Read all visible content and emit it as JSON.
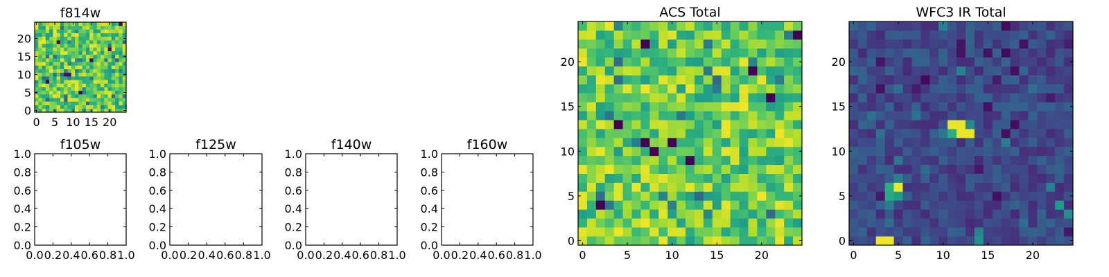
{
  "chart_data": [
    {
      "id": "f814w",
      "type": "heatmap",
      "title": "f814w",
      "xlabel": "",
      "ylabel": "",
      "grid_size": 25,
      "xlim": [
        -0.5,
        24.5
      ],
      "ylim": [
        -0.5,
        24.5
      ],
      "x_ticks": [
        0,
        5,
        10,
        15,
        20
      ],
      "x_tick_labels": [
        "0",
        "5",
        "10",
        "15",
        "20"
      ],
      "y_ticks": [
        0,
        5,
        10,
        15,
        20
      ],
      "y_tick_labels": [
        "0",
        "5",
        "10",
        "15",
        "20"
      ],
      "colormap": "viridis",
      "pattern": "noise_high",
      "seed": 814
    },
    {
      "id": "f105w",
      "type": "empty",
      "title": "f105w",
      "xlim": [
        0.0,
        1.0
      ],
      "ylim": [
        0.0,
        1.0
      ],
      "x_ticks": [
        0.0,
        0.2,
        0.4,
        0.6,
        0.8,
        1.0
      ],
      "x_tick_labels": [
        "0.0",
        "0.2",
        "0.4",
        "0.6",
        "0.8",
        "1.0"
      ],
      "y_ticks": [
        0.0,
        0.2,
        0.4,
        0.6,
        0.8,
        1.0
      ],
      "y_tick_labels": [
        "0.0",
        "0.2",
        "0.4",
        "0.6",
        "0.8",
        "1.0"
      ]
    },
    {
      "id": "f125w",
      "type": "empty",
      "title": "f125w",
      "xlim": [
        0.0,
        1.0
      ],
      "ylim": [
        0.0,
        1.0
      ],
      "x_ticks": [
        0.0,
        0.2,
        0.4,
        0.6,
        0.8,
        1.0
      ],
      "x_tick_labels": [
        "0.0",
        "0.2",
        "0.4",
        "0.6",
        "0.8",
        "1.0"
      ],
      "y_ticks": [
        0.0,
        0.2,
        0.4,
        0.6,
        0.8,
        1.0
      ],
      "y_tick_labels": [
        "0.0",
        "0.2",
        "0.4",
        "0.6",
        "0.8",
        "1.0"
      ]
    },
    {
      "id": "f140w",
      "type": "empty",
      "title": "f140w",
      "xlim": [
        0.0,
        1.0
      ],
      "ylim": [
        0.0,
        1.0
      ],
      "x_ticks": [
        0.0,
        0.2,
        0.4,
        0.6,
        0.8,
        1.0
      ],
      "x_tick_labels": [
        "0.0",
        "0.2",
        "0.4",
        "0.6",
        "0.8",
        "1.0"
      ],
      "y_ticks": [
        0.0,
        0.2,
        0.4,
        0.6,
        0.8,
        1.0
      ],
      "y_tick_labels": [
        "0.0",
        "0.2",
        "0.4",
        "0.6",
        "0.8",
        "1.0"
      ]
    },
    {
      "id": "f160w",
      "type": "empty",
      "title": "f160w",
      "xlim": [
        0.0,
        1.0
      ],
      "ylim": [
        0.0,
        1.0
      ],
      "x_ticks": [
        0.0,
        0.2,
        0.4,
        0.6,
        0.8,
        1.0
      ],
      "x_tick_labels": [
        "0.0",
        "0.2",
        "0.4",
        "0.6",
        "0.8",
        "1.0"
      ],
      "y_ticks": [
        0.0,
        0.2,
        0.4,
        0.6,
        0.8,
        1.0
      ],
      "y_tick_labels": [
        "0.0",
        "0.2",
        "0.4",
        "0.6",
        "0.8",
        "1.0"
      ]
    },
    {
      "id": "acs-total",
      "type": "heatmap",
      "title": "ACS Total",
      "xlabel": "",
      "ylabel": "",
      "grid_size": 25,
      "xlim": [
        -0.5,
        24.5
      ],
      "ylim": [
        -0.5,
        24.5
      ],
      "x_ticks": [
        0,
        5,
        10,
        15,
        20
      ],
      "x_tick_labels": [
        "0",
        "5",
        "10",
        "15",
        "20"
      ],
      "y_ticks": [
        0,
        5,
        10,
        15,
        20
      ],
      "y_tick_labels": [
        "0",
        "5",
        "10",
        "15",
        "20"
      ],
      "colormap": "viridis",
      "pattern": "noise_high",
      "seed": 4242,
      "dark_cells": [
        [
          2,
          4
        ],
        [
          7,
          11
        ],
        [
          8,
          10
        ],
        [
          10,
          11
        ],
        [
          12,
          9
        ],
        [
          24,
          23
        ],
        [
          21,
          16
        ],
        [
          4,
          13
        ],
        [
          19,
          19
        ],
        [
          7,
          22
        ]
      ]
    },
    {
      "id": "wfc3-ir-total",
      "type": "heatmap",
      "title": "WFC3 IR Total",
      "xlabel": "",
      "ylabel": "",
      "grid_size": 25,
      "xlim": [
        -0.5,
        24.5
      ],
      "ylim": [
        -0.5,
        24.5
      ],
      "x_ticks": [
        0,
        5,
        10,
        15,
        20
      ],
      "x_tick_labels": [
        "0",
        "5",
        "10",
        "15",
        "20"
      ],
      "y_ticks": [
        0,
        5,
        10,
        15,
        20
      ],
      "y_tick_labels": [
        "0",
        "5",
        "10",
        "15",
        "20"
      ],
      "colormap": "viridis",
      "pattern": "noise_low",
      "seed": 3160,
      "bright_cells": [
        [
          11,
          13,
          0.97
        ],
        [
          12,
          13,
          0.97
        ],
        [
          12,
          12,
          0.97
        ],
        [
          13,
          12,
          0.97
        ],
        [
          11,
          12,
          0.62
        ],
        [
          13,
          13,
          0.48
        ],
        [
          10,
          12,
          0.4
        ],
        [
          5,
          6,
          0.97
        ],
        [
          4,
          6,
          0.62
        ],
        [
          4,
          5,
          0.6
        ],
        [
          5,
          5,
          0.55
        ],
        [
          5,
          7,
          0.45
        ],
        [
          3,
          0,
          0.98
        ],
        [
          4,
          0,
          0.98
        ],
        [
          23,
          4,
          0.55
        ],
        [
          24,
          3,
          0.5
        ],
        [
          14,
          0,
          0.5
        ],
        [
          14,
          1,
          0.45
        ]
      ]
    }
  ]
}
